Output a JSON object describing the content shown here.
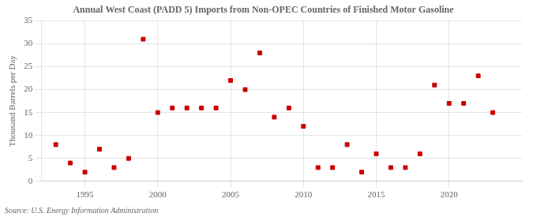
{
  "chart_data": {
    "type": "scatter",
    "title": "Annual West Coast (PADD 5) Imports from Non-OPEC Countries of Finished Motor Gasoline",
    "y_label": "Thousand Barrels per Day",
    "annotation": "Source: U.S. Energy Information Administration",
    "x": [
      1993,
      1994,
      1995,
      1996,
      1997,
      1998,
      1999,
      2000,
      2001,
      2002,
      2003,
      2004,
      2005,
      2006,
      2007,
      2008,
      2009,
      2010,
      2011,
      2012,
      2013,
      2014,
      2015,
      2016,
      2017,
      2018,
      2019,
      2020,
      2021,
      2022,
      2023
    ],
    "values": [
      8,
      4,
      2,
      7,
      3,
      5,
      31,
      15,
      16,
      16,
      16,
      16,
      22,
      20,
      28,
      14,
      16,
      12,
      3,
      3,
      8,
      2,
      6,
      3,
      3,
      6,
      21,
      17,
      17,
      23,
      15
    ],
    "color": "#cc0000",
    "marker": "square",
    "xlim": [
      1992,
      2025
    ],
    "xticks": [
      1995,
      2000,
      2005,
      2010,
      2015,
      2020
    ],
    "ylim": [
      0,
      35
    ],
    "yticks": [
      0,
      5,
      10,
      15,
      20,
      25,
      30,
      35
    ],
    "grid": true
  }
}
